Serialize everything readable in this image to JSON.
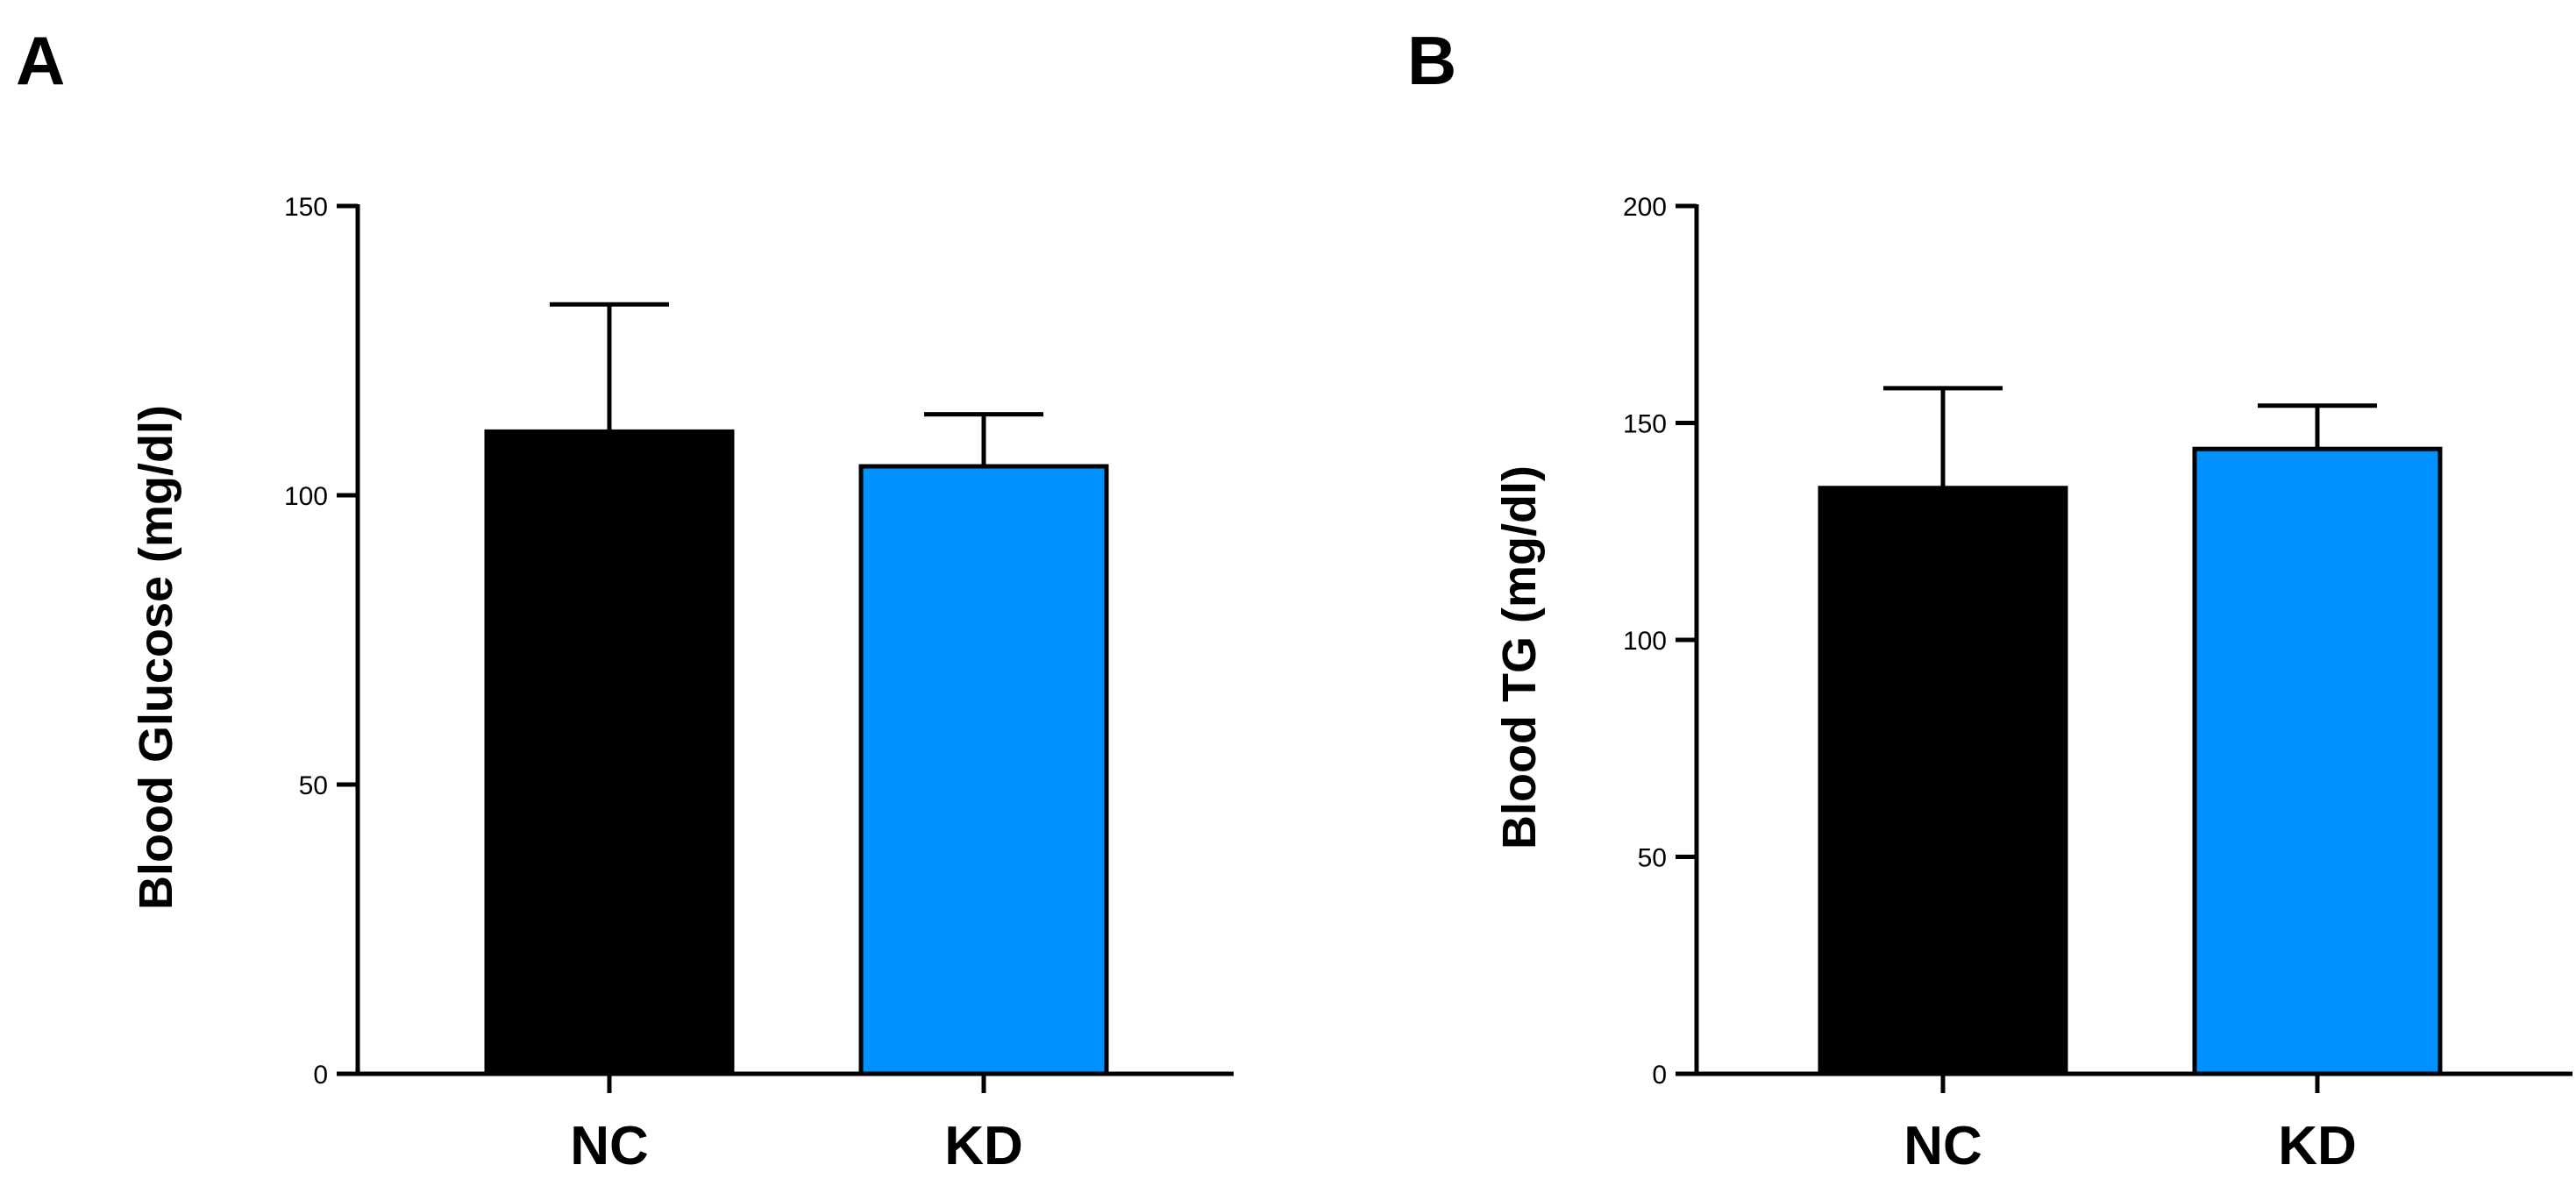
{
  "chart_data": [
    {
      "panel": "A",
      "type": "bar",
      "categories": [
        "NC",
        "KD"
      ],
      "values": [
        111,
        105
      ],
      "errors": [
        22,
        9
      ],
      "bar_colors": [
        "#000000",
        "#0090ff"
      ],
      "title": "",
      "xlabel": "",
      "ylabel": "Blood Glucose (mg/dl)",
      "ylim": [
        0,
        150
      ],
      "yticks": [
        0,
        50,
        100,
        150
      ],
      "grid": false,
      "legend": "none"
    },
    {
      "panel": "B",
      "type": "bar",
      "categories": [
        "NC",
        "KD"
      ],
      "values": [
        135,
        144
      ],
      "errors": [
        23,
        10
      ],
      "bar_colors": [
        "#000000",
        "#0090ff"
      ],
      "title": "",
      "xlabel": "",
      "ylabel": "Blood TG (mg/dl)",
      "ylim": [
        0,
        200
      ],
      "yticks": [
        0,
        50,
        100,
        150,
        200
      ],
      "grid": false,
      "legend": "none"
    }
  ]
}
